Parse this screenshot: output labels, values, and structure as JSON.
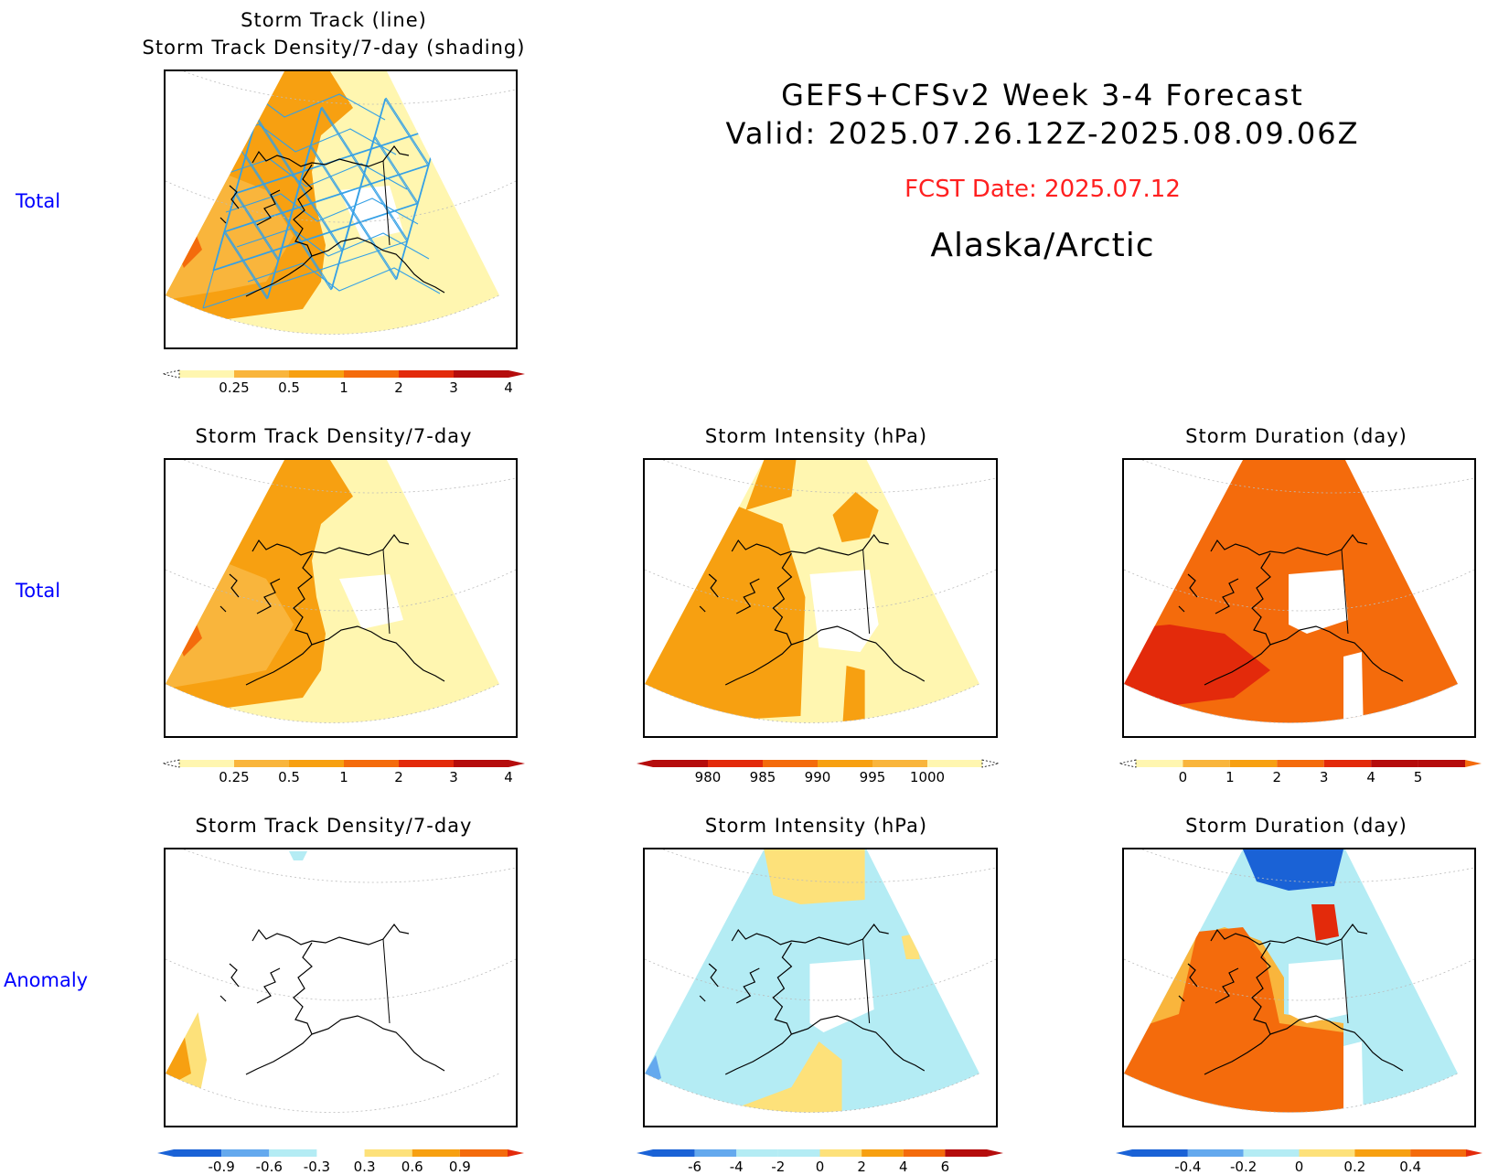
{
  "header": {
    "title_line1": "GEFS+CFSv2 Week 3-4 Forecast",
    "title_line2": "Valid: 2025.07.26.12Z-2025.08.09.06Z",
    "fcst_date": "FCST Date: 2025.07.12",
    "region": "Alaska/Arctic"
  },
  "row_labels": [
    "Total",
    "Total",
    "Anomaly"
  ],
  "panels": [
    {
      "id": "p1",
      "title": "Storm Track (line)",
      "title2": "Storm Track Density/7-day (shading)",
      "legend": [
        "0.25",
        "0.5",
        "1",
        "2",
        "3",
        "4"
      ]
    },
    {
      "id": "p2",
      "title": "Storm Track Density/7-day",
      "legend": [
        "0.25",
        "0.5",
        "1",
        "2",
        "3",
        "4"
      ]
    },
    {
      "id": "p3",
      "title": "Storm Intensity (hPa)",
      "legend": [
        "980",
        "985",
        "990",
        "995",
        "1000"
      ]
    },
    {
      "id": "p4",
      "title": "Storm Duration (day)",
      "legend": [
        "0",
        "1",
        "2",
        "3",
        "4",
        "5"
      ]
    },
    {
      "id": "p5",
      "title": "Storm Track Density/7-day",
      "legend": [
        "-0.9",
        "-0.6",
        "-0.3",
        "0.3",
        "0.6",
        "0.9"
      ]
    },
    {
      "id": "p6",
      "title": "Storm Intensity (hPa)",
      "legend": [
        "-6",
        "-4",
        "-2",
        "0",
        "2",
        "4",
        "6"
      ]
    },
    {
      "id": "p7",
      "title": "Storm Duration (day)",
      "legend": [
        "-0.4",
        "-0.2",
        "0",
        "0.2",
        "0.4"
      ]
    }
  ],
  "colors": {
    "lightyellow": "#fff6b0",
    "yellow": "#fde17a",
    "lightorange": "#f9b53c",
    "orange": "#f7a011",
    "darkorange": "#f46b0c",
    "red": "#e32a0b",
    "darkred": "#b50c0c",
    "lightblue": "#b4ecf4",
    "blue": "#64a9ee",
    "darkblue": "#1a62d6",
    "track": "#34a0e6"
  }
}
